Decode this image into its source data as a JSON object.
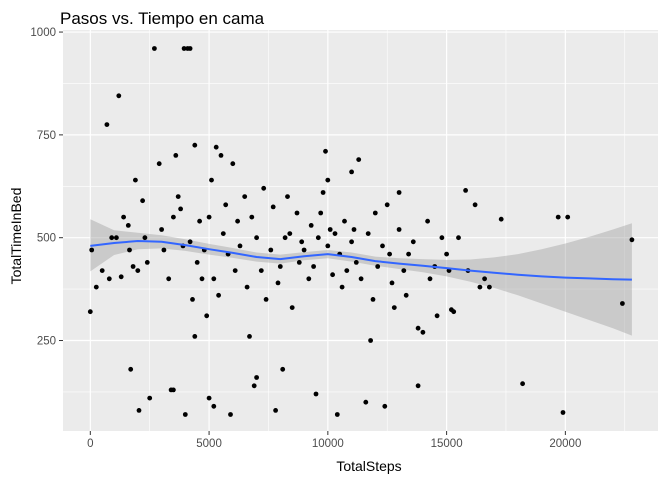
{
  "chart_data": {
    "type": "scatter",
    "title": "Pasos vs. Tiempo en cama",
    "xlabel": "TotalSteps",
    "ylabel": "TotalTimeInBed",
    "xlim": [
      -1150,
      23900
    ],
    "ylim": [
      30,
      1005
    ],
    "x_ticks": [
      0,
      5000,
      10000,
      15000,
      20000
    ],
    "x_tick_labels": [
      "0",
      "5000",
      "10000",
      "15000",
      "20000"
    ],
    "y_ticks": [
      250,
      500,
      750,
      1000
    ],
    "y_tick_labels": [
      "250",
      "500",
      "750",
      "1000"
    ],
    "grid": true,
    "legend": "none",
    "colors": {
      "panel_background": "#ebebeb",
      "grid_line": "#ffffff",
      "point": "#000000",
      "smooth_line": "#3366ff",
      "confidence_band": "#999999"
    },
    "points": [
      {
        "x": 0,
        "y": 320
      },
      {
        "x": 60,
        "y": 470
      },
      {
        "x": 250,
        "y": 380
      },
      {
        "x": 500,
        "y": 420
      },
      {
        "x": 700,
        "y": 775
      },
      {
        "x": 800,
        "y": 400
      },
      {
        "x": 900,
        "y": 500
      },
      {
        "x": 1100,
        "y": 500
      },
      {
        "x": 1200,
        "y": 845
      },
      {
        "x": 1300,
        "y": 405
      },
      {
        "x": 1400,
        "y": 550
      },
      {
        "x": 1600,
        "y": 530
      },
      {
        "x": 1650,
        "y": 470
      },
      {
        "x": 1700,
        "y": 180
      },
      {
        "x": 1800,
        "y": 430
      },
      {
        "x": 1900,
        "y": 640
      },
      {
        "x": 2000,
        "y": 420
      },
      {
        "x": 2050,
        "y": 80
      },
      {
        "x": 2200,
        "y": 590
      },
      {
        "x": 2300,
        "y": 500
      },
      {
        "x": 2400,
        "y": 440
      },
      {
        "x": 2500,
        "y": 110
      },
      {
        "x": 2700,
        "y": 960
      },
      {
        "x": 2900,
        "y": 680
      },
      {
        "x": 3000,
        "y": 520
      },
      {
        "x": 3100,
        "y": 470
      },
      {
        "x": 3300,
        "y": 400
      },
      {
        "x": 3400,
        "y": 130
      },
      {
        "x": 3500,
        "y": 130
      },
      {
        "x": 3500,
        "y": 550
      },
      {
        "x": 3600,
        "y": 700
      },
      {
        "x": 3700,
        "y": 600
      },
      {
        "x": 3800,
        "y": 570
      },
      {
        "x": 3900,
        "y": 480
      },
      {
        "x": 3950,
        "y": 960
      },
      {
        "x": 4000,
        "y": 70
      },
      {
        "x": 4100,
        "y": 960
      },
      {
        "x": 4200,
        "y": 960
      },
      {
        "x": 4200,
        "y": 490
      },
      {
        "x": 4300,
        "y": 350
      },
      {
        "x": 4400,
        "y": 260
      },
      {
        "x": 4400,
        "y": 725
      },
      {
        "x": 4500,
        "y": 440
      },
      {
        "x": 4600,
        "y": 540
      },
      {
        "x": 4700,
        "y": 400
      },
      {
        "x": 4800,
        "y": 470
      },
      {
        "x": 4900,
        "y": 310
      },
      {
        "x": 5000,
        "y": 110
      },
      {
        "x": 5000,
        "y": 550
      },
      {
        "x": 5100,
        "y": 640
      },
      {
        "x": 5200,
        "y": 90
      },
      {
        "x": 5200,
        "y": 400
      },
      {
        "x": 5300,
        "y": 720
      },
      {
        "x": 5400,
        "y": 360
      },
      {
        "x": 5500,
        "y": 700
      },
      {
        "x": 5600,
        "y": 510
      },
      {
        "x": 5700,
        "y": 580
      },
      {
        "x": 5800,
        "y": 460
      },
      {
        "x": 5900,
        "y": 70
      },
      {
        "x": 6000,
        "y": 680
      },
      {
        "x": 6100,
        "y": 420
      },
      {
        "x": 6200,
        "y": 540
      },
      {
        "x": 6300,
        "y": 480
      },
      {
        "x": 6500,
        "y": 600
      },
      {
        "x": 6600,
        "y": 380
      },
      {
        "x": 6700,
        "y": 260
      },
      {
        "x": 6800,
        "y": 550
      },
      {
        "x": 6900,
        "y": 140
      },
      {
        "x": 7000,
        "y": 160
      },
      {
        "x": 7000,
        "y": 500
      },
      {
        "x": 7200,
        "y": 420
      },
      {
        "x": 7300,
        "y": 620
      },
      {
        "x": 7400,
        "y": 350
      },
      {
        "x": 7600,
        "y": 470
      },
      {
        "x": 7700,
        "y": 575
      },
      {
        "x": 7800,
        "y": 80
      },
      {
        "x": 7900,
        "y": 390
      },
      {
        "x": 8000,
        "y": 430
      },
      {
        "x": 8100,
        "y": 180
      },
      {
        "x": 8200,
        "y": 500
      },
      {
        "x": 8300,
        "y": 600
      },
      {
        "x": 8400,
        "y": 510
      },
      {
        "x": 8500,
        "y": 330
      },
      {
        "x": 8700,
        "y": 560
      },
      {
        "x": 8800,
        "y": 440
      },
      {
        "x": 8900,
        "y": 490
      },
      {
        "x": 9000,
        "y": 470
      },
      {
        "x": 9200,
        "y": 400
      },
      {
        "x": 9300,
        "y": 530
      },
      {
        "x": 9400,
        "y": 430
      },
      {
        "x": 9500,
        "y": 120
      },
      {
        "x": 9600,
        "y": 500
      },
      {
        "x": 9700,
        "y": 560
      },
      {
        "x": 9800,
        "y": 610
      },
      {
        "x": 9900,
        "y": 710
      },
      {
        "x": 10000,
        "y": 480
      },
      {
        "x": 10000,
        "y": 640
      },
      {
        "x": 10100,
        "y": 520
      },
      {
        "x": 10200,
        "y": 410
      },
      {
        "x": 10300,
        "y": 510
      },
      {
        "x": 10400,
        "y": 70
      },
      {
        "x": 10500,
        "y": 460
      },
      {
        "x": 10600,
        "y": 380
      },
      {
        "x": 10700,
        "y": 540
      },
      {
        "x": 10800,
        "y": 420
      },
      {
        "x": 11000,
        "y": 660
      },
      {
        "x": 11000,
        "y": 490
      },
      {
        "x": 11100,
        "y": 520
      },
      {
        "x": 11200,
        "y": 440
      },
      {
        "x": 11300,
        "y": 690
      },
      {
        "x": 11400,
        "y": 400
      },
      {
        "x": 11600,
        "y": 100
      },
      {
        "x": 11700,
        "y": 510
      },
      {
        "x": 11800,
        "y": 250
      },
      {
        "x": 11900,
        "y": 350
      },
      {
        "x": 12000,
        "y": 560
      },
      {
        "x": 12100,
        "y": 430
      },
      {
        "x": 12300,
        "y": 480
      },
      {
        "x": 12400,
        "y": 90
      },
      {
        "x": 12500,
        "y": 580
      },
      {
        "x": 12600,
        "y": 460
      },
      {
        "x": 12700,
        "y": 390
      },
      {
        "x": 12800,
        "y": 330
      },
      {
        "x": 13000,
        "y": 610
      },
      {
        "x": 13000,
        "y": 520
      },
      {
        "x": 13200,
        "y": 420
      },
      {
        "x": 13300,
        "y": 360
      },
      {
        "x": 13400,
        "y": 460
      },
      {
        "x": 13600,
        "y": 490
      },
      {
        "x": 13800,
        "y": 140
      },
      {
        "x": 13800,
        "y": 280
      },
      {
        "x": 14000,
        "y": 270
      },
      {
        "x": 14200,
        "y": 540
      },
      {
        "x": 14300,
        "y": 400
      },
      {
        "x": 14500,
        "y": 430
      },
      {
        "x": 14600,
        "y": 310
      },
      {
        "x": 14800,
        "y": 500
      },
      {
        "x": 15000,
        "y": 460
      },
      {
        "x": 15100,
        "y": 420
      },
      {
        "x": 15200,
        "y": 325
      },
      {
        "x": 15300,
        "y": 320
      },
      {
        "x": 15500,
        "y": 500
      },
      {
        "x": 15800,
        "y": 615
      },
      {
        "x": 15900,
        "y": 420
      },
      {
        "x": 16200,
        "y": 580
      },
      {
        "x": 16400,
        "y": 380
      },
      {
        "x": 16600,
        "y": 400
      },
      {
        "x": 16800,
        "y": 380
      },
      {
        "x": 17300,
        "y": 545
      },
      {
        "x": 18200,
        "y": 145
      },
      {
        "x": 19700,
        "y": 550
      },
      {
        "x": 19900,
        "y": 75
      },
      {
        "x": 20100,
        "y": 550
      },
      {
        "x": 22400,
        "y": 340
      },
      {
        "x": 22800,
        "y": 495
      }
    ],
    "smooth_fit": {
      "x": [
        0,
        1000,
        2000,
        3000,
        4000,
        5000,
        6000,
        7000,
        8000,
        9000,
        10000,
        11000,
        12000,
        13000,
        14000,
        15000,
        16000,
        17000,
        18000,
        19000,
        20000,
        21000,
        22000,
        22800
      ],
      "y": [
        480,
        487,
        492,
        490,
        482,
        472,
        463,
        453,
        448,
        455,
        460,
        453,
        443,
        437,
        432,
        426,
        420,
        415,
        410,
        406,
        403,
        401,
        399,
        398
      ],
      "ci_low": [
        418,
        458,
        472,
        474,
        468,
        459,
        451,
        442,
        437,
        445,
        450,
        442,
        432,
        424,
        416,
        406,
        393,
        378,
        360,
        340,
        320,
        300,
        280,
        262
      ],
      "ci_high": [
        545,
        518,
        512,
        506,
        496,
        485,
        475,
        464,
        459,
        465,
        470,
        464,
        454,
        450,
        448,
        446,
        447,
        452,
        460,
        472,
        486,
        502,
        520,
        535
      ]
    }
  }
}
